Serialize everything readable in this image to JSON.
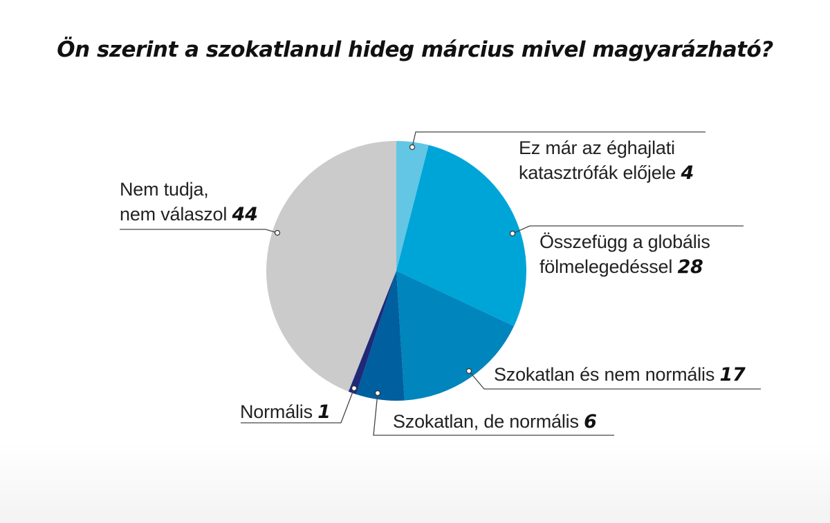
{
  "title": "Ön szerint a szokatlanul hideg március mivel magyarázható?",
  "labels": {
    "s0": {
      "line1": "Ez már az éghajlati",
      "line2": "katasztrófák előjele",
      "value": "4"
    },
    "s1": {
      "line1": "Összefügg a globális",
      "line2": "fölmelegedéssel",
      "value": "28"
    },
    "s2": {
      "line1": "Szokatlan és nem normális",
      "value": "17"
    },
    "s3": {
      "line1": "Szokatlan, de normális",
      "value": "6"
    },
    "s4": {
      "line1": "Normális",
      "value": "1"
    },
    "s5": {
      "line1": "Nem tudja,",
      "line2": "nem válaszol",
      "value": "44"
    }
  },
  "chart_data": {
    "type": "pie",
    "title": "Ön szerint a szokatlanul hideg március mivel magyarázható?",
    "categories": [
      "Ez már az éghajlati katasztrófák előjele",
      "Összefügg a globális fölmelegedéssel",
      "Szokatlan és nem normális",
      "Szokatlan, de normális",
      "Normális",
      "Nem tudja, nem válaszol"
    ],
    "values": [
      4,
      28,
      17,
      6,
      1,
      44
    ],
    "colors": [
      "#62c6e4",
      "#00a5d8",
      "#0085bd",
      "#005f9e",
      "#1e2a78",
      "#cbcbcb"
    ],
    "start_angle": "12 o'clock",
    "direction": "clockwise",
    "legend": "callout labels with leader lines"
  }
}
